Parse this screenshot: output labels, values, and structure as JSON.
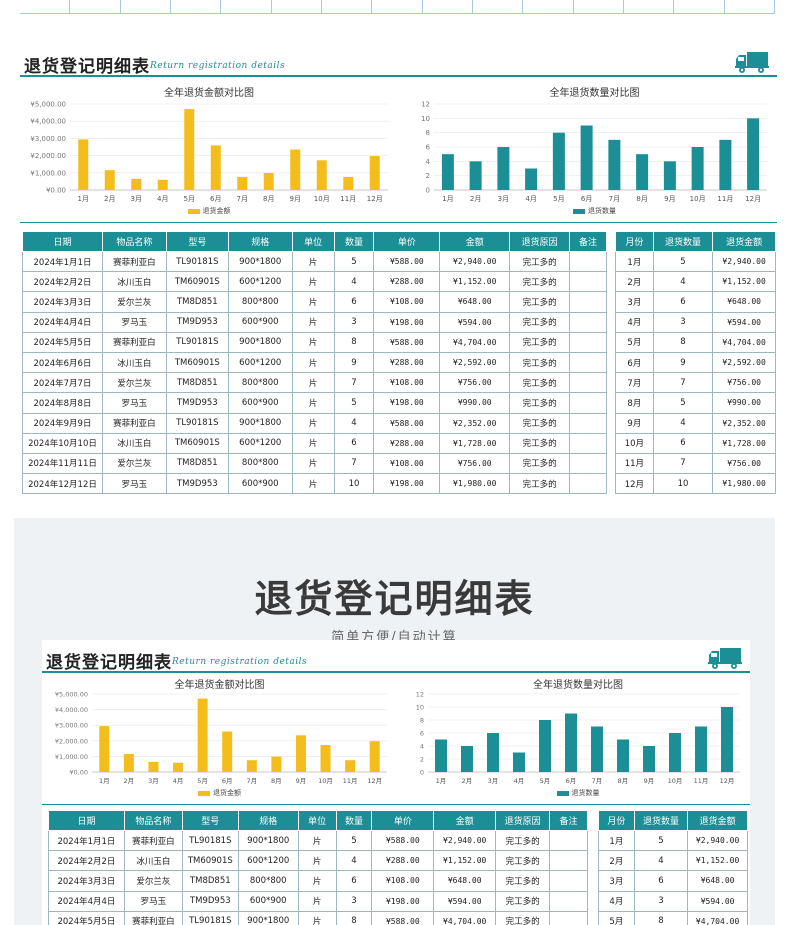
{
  "sheet": {
    "title": "退货登记明细表",
    "subtitle": "Return registration details",
    "icon": "truck-icon",
    "accent": "#1b8f95"
  },
  "promo": {
    "title": "退货登记明细表",
    "tagline": "简单方便/自动计算"
  },
  "chart_data": [
    {
      "type": "bar",
      "title": "全年退货金额对比图",
      "categories": [
        "1月",
        "2月",
        "3月",
        "4月",
        "5月",
        "6月",
        "7月",
        "8月",
        "9月",
        "10月",
        "11月",
        "12月"
      ],
      "series": [
        {
          "name": "退货金额",
          "color": "#f2bd1d",
          "values": [
            2940,
            1152,
            648,
            594,
            4704,
            2592,
            756,
            990,
            2352,
            1728,
            756,
            1980
          ]
        }
      ],
      "ylim": [
        0,
        5000
      ],
      "yticks": [
        "¥0.00",
        "¥1,000.00",
        "¥2,000.00",
        "¥3,000.00",
        "¥4,000.00",
        "¥5,000.00"
      ],
      "legend": "bottom"
    },
    {
      "type": "bar",
      "title": "全年退货数量对比图",
      "categories": [
        "1月",
        "2月",
        "3月",
        "4月",
        "5月",
        "6月",
        "7月",
        "8月",
        "9月",
        "10月",
        "11月",
        "12月"
      ],
      "series": [
        {
          "name": "退货数量",
          "color": "#1b8f95",
          "values": [
            5,
            4,
            6,
            3,
            8,
            9,
            7,
            5,
            4,
            6,
            7,
            10
          ]
        }
      ],
      "ylim": [
        0,
        12
      ],
      "yticks": [
        "0",
        "2",
        "4",
        "6",
        "8",
        "10",
        "12"
      ],
      "legend": "bottom"
    }
  ],
  "table": {
    "headers": [
      "日期",
      "物品名称",
      "型号",
      "规格",
      "单位",
      "数量",
      "单价",
      "金额",
      "退货原因",
      "备注"
    ],
    "rows": [
      [
        "2024年1月1日",
        "赛菲利亚白",
        "TL90181S",
        "900*1800",
        "片",
        "5",
        "¥588.00",
        "¥2,940.00",
        "完工多的",
        ""
      ],
      [
        "2024年2月2日",
        "冰川玉白",
        "TM60901S",
        "600*1200",
        "片",
        "4",
        "¥288.00",
        "¥1,152.00",
        "完工多的",
        ""
      ],
      [
        "2024年3月3日",
        "爱尔兰灰",
        "TM8D851",
        "800*800",
        "片",
        "6",
        "¥108.00",
        "¥648.00",
        "完工多的",
        ""
      ],
      [
        "2024年4月4日",
        "罗马玉",
        "TM9D953",
        "600*900",
        "片",
        "3",
        "¥198.00",
        "¥594.00",
        "完工多的",
        ""
      ],
      [
        "2024年5月5日",
        "赛菲利亚白",
        "TL90181S",
        "900*1800",
        "片",
        "8",
        "¥588.00",
        "¥4,704.00",
        "完工多的",
        ""
      ],
      [
        "2024年6月6日",
        "冰川玉白",
        "TM60901S",
        "600*1200",
        "片",
        "9",
        "¥288.00",
        "¥2,592.00",
        "完工多的",
        ""
      ],
      [
        "2024年7月7日",
        "爱尔兰灰",
        "TM8D851",
        "800*800",
        "片",
        "7",
        "¥108.00",
        "¥756.00",
        "完工多的",
        ""
      ],
      [
        "2024年8月8日",
        "罗马玉",
        "TM9D953",
        "600*900",
        "片",
        "5",
        "¥198.00",
        "¥990.00",
        "完工多的",
        ""
      ],
      [
        "2024年9月9日",
        "赛菲利亚白",
        "TL90181S",
        "900*1800",
        "片",
        "4",
        "¥588.00",
        "¥2,352.00",
        "完工多的",
        ""
      ],
      [
        "2024年10月10日",
        "冰川玉白",
        "TM60901S",
        "600*1200",
        "片",
        "6",
        "¥288.00",
        "¥1,728.00",
        "完工多的",
        ""
      ],
      [
        "2024年11月11日",
        "爱尔兰灰",
        "TM8D851",
        "800*800",
        "片",
        "7",
        "¥108.00",
        "¥756.00",
        "完工多的",
        ""
      ],
      [
        "2024年12月12日",
        "罗马玉",
        "TM9D953",
        "600*900",
        "片",
        "10",
        "¥198.00",
        "¥1,980.00",
        "完工多的",
        ""
      ]
    ]
  },
  "summary": {
    "headers": [
      "月份",
      "退货数量",
      "退货金额"
    ],
    "rows": [
      [
        "1月",
        "5",
        "¥2,940.00"
      ],
      [
        "2月",
        "4",
        "¥1,152.00"
      ],
      [
        "3月",
        "6",
        "¥648.00"
      ],
      [
        "4月",
        "3",
        "¥594.00"
      ],
      [
        "5月",
        "8",
        "¥4,704.00"
      ],
      [
        "6月",
        "9",
        "¥2,592.00"
      ],
      [
        "7月",
        "7",
        "¥756.00"
      ],
      [
        "8月",
        "5",
        "¥990.00"
      ],
      [
        "9月",
        "4",
        "¥2,352.00"
      ],
      [
        "10月",
        "6",
        "¥1,728.00"
      ],
      [
        "11月",
        "7",
        "¥756.00"
      ],
      [
        "12月",
        "10",
        "¥1,980.00"
      ]
    ]
  }
}
